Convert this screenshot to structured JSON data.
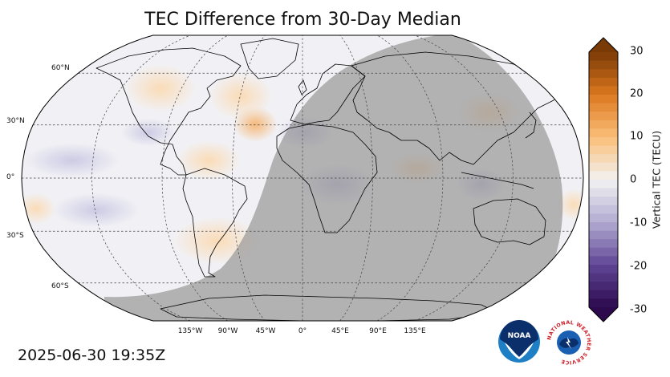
{
  "title": "TEC Difference from 30-Day Median",
  "timestamp": "2025-06-30 19:35Z",
  "map": {
    "projection": "Robinson",
    "gridlines": "dashed",
    "night_shading": true,
    "lat_labels": [
      "60°N",
      "30°N",
      "0°",
      "30°S",
      "60°S"
    ],
    "lon_labels": [
      "135°W",
      "90°W",
      "45°W",
      "0°",
      "45°E",
      "90°E",
      "135°E"
    ]
  },
  "colorbar": {
    "label": "Vertical TEC (TECU)",
    "ticks": [
      "30",
      "20",
      "10",
      "0",
      "-10",
      "-20",
      "-30"
    ],
    "range": [
      -30,
      30
    ],
    "colormap": "purple-white-orange",
    "extend": "both"
  },
  "logos": {
    "noaa_text": "NOAA",
    "nws_text": "NATIONAL WEATHER SERVICE"
  },
  "colors": {
    "night": "#8a8a8a",
    "positive_max": "#7a3a06",
    "negative_max": "#2d0a4e",
    "neutral": "#f2f2f2"
  }
}
